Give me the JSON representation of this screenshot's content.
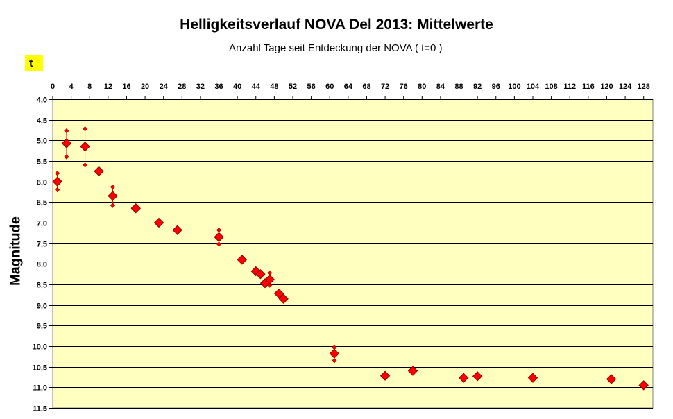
{
  "chart_data": {
    "type": "scatter",
    "title": "Helligkeitsverlauf NOVA Del 2013: Mittelwerte",
    "xlabel": "Anzahl Tage seit Entdeckung der NOVA ( t=0 )",
    "xlabel_box": "t",
    "ylabel": "Magnitude",
    "xlim": [
      0,
      130
    ],
    "ylim": [
      11.5,
      4.0
    ],
    "y_inverted": true,
    "x_axis_position": "top",
    "xticks": [
      "0",
      "4",
      "8",
      "12",
      "16",
      "20",
      "24",
      "28",
      "32",
      "36",
      "40",
      "44",
      "48",
      "52",
      "56",
      "60",
      "64",
      "68",
      "72",
      "76",
      "80",
      "84",
      "88",
      "92",
      "96",
      "100",
      "104",
      "108",
      "112",
      "116",
      "120",
      "124",
      "128"
    ],
    "yticks": [
      "4,0",
      "4,5",
      "5,0",
      "5,5",
      "6,0",
      "6,5",
      "7,0",
      "7,5",
      "8,0",
      "8,5",
      "9,0",
      "9,5",
      "10,0",
      "10,5",
      "11,0",
      "11,5"
    ],
    "grid": "horizontal",
    "colors": {
      "plot_bg": "#ffffc0",
      "marker": "#ff0000",
      "grid": "#000000"
    },
    "series": [
      {
        "points": [
          {
            "x": 1,
            "y": 6.0,
            "ymin": 5.8,
            "ymax": 6.2
          },
          {
            "x": 3,
            "y": 5.07,
            "ymin": 4.77,
            "ymax": 5.4
          },
          {
            "x": 7,
            "y": 5.15,
            "ymin": 4.72,
            "ymax": 5.6
          },
          {
            "x": 10,
            "y": 5.75
          },
          {
            "x": 13,
            "y": 6.35,
            "ymin": 6.13,
            "ymax": 6.58
          },
          {
            "x": 18,
            "y": 6.65
          },
          {
            "x": 23,
            "y": 7.0
          },
          {
            "x": 27,
            "y": 7.18
          },
          {
            "x": 36,
            "y": 7.35,
            "ymin": 7.18,
            "ymax": 7.52
          },
          {
            "x": 41,
            "y": 7.9
          },
          {
            "x": 44,
            "y": 8.18
          },
          {
            "x": 45,
            "y": 8.25
          },
          {
            "x": 46,
            "y": 8.47
          },
          {
            "x": 47,
            "y": 8.38,
            "ymin": 8.22,
            "ymax": 8.52
          },
          {
            "x": 49,
            "y": 8.72
          },
          {
            "x": 50,
            "y": 8.85
          },
          {
            "x": 61,
            "y": 10.18,
            "ymin": 10.03,
            "ymax": 10.35
          },
          {
            "x": 72,
            "y": 10.72
          },
          {
            "x": 78,
            "y": 10.6
          },
          {
            "x": 89,
            "y": 10.77
          },
          {
            "x": 92,
            "y": 10.73
          },
          {
            "x": 104,
            "y": 10.77
          },
          {
            "x": 121,
            "y": 10.8
          },
          {
            "x": 128,
            "y": 10.95
          }
        ]
      }
    ]
  }
}
